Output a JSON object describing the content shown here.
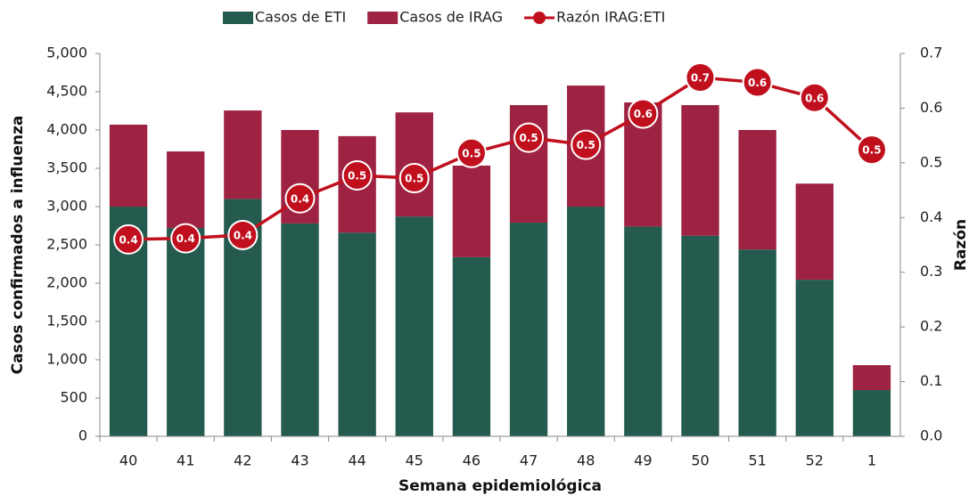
{
  "chart_data": {
    "type": "bar",
    "stacked": true,
    "x_label": "Semana epidemiológica",
    "y_label": "Casos confirmados a influenza",
    "y2_label": "Razón",
    "categories": [
      "40",
      "41",
      "42",
      "43",
      "44",
      "45",
      "46",
      "47",
      "48",
      "49",
      "50",
      "51",
      "52",
      "1"
    ],
    "series": [
      {
        "name": "Casos de ETI",
        "color": "#245b4e",
        "values": [
          3000,
          2720,
          3100,
          2780,
          2660,
          2870,
          2340,
          2790,
          3000,
          2740,
          2620,
          2440,
          2045,
          605
        ]
      },
      {
        "name": "Casos de IRAG",
        "color": "#9e2241",
        "values": [
          1070,
          1000,
          1155,
          1220,
          1260,
          1360,
          1195,
          1535,
          1580,
          1620,
          1705,
          1560,
          1255,
          325
        ]
      },
      {
        "name": "Razón IRAG:ETI",
        "type": "line",
        "axis": "y2",
        "color": "#c0101e",
        "values": [
          0.36,
          0.362,
          0.368,
          0.435,
          0.477,
          0.472,
          0.518,
          0.546,
          0.533,
          0.59,
          0.656,
          0.647,
          0.619,
          0.524
        ],
        "value_labels": [
          "0.4",
          "0.4",
          "0.4",
          "0.4",
          "0.5",
          "0.5",
          "0.5",
          "0.5",
          "0.5",
          "0.6",
          "0.7",
          "0.6",
          "0.6",
          "0.5"
        ]
      }
    ],
    "ylim": [
      0,
      5000
    ],
    "yticks": [
      0,
      500,
      {
        "value": 1000,
        "label": "1,000"
      },
      {
        "value": 1500,
        "label": "1,500"
      },
      {
        "value": 2000,
        "label": "2,000"
      },
      {
        "value": 2500,
        "label": "2,500"
      },
      {
        "value": 3000,
        "label": "3,000"
      },
      {
        "value": 3500,
        "label": "3,500"
      },
      {
        "value": 4000,
        "label": "4,000"
      },
      {
        "value": 4500,
        "label": "4,500"
      },
      {
        "value": 5000,
        "label": "5,000"
      }
    ],
    "y2lim": [
      0,
      0.7
    ],
    "y2ticks": [
      {
        "value": 0,
        "label": "0.0"
      },
      0.1,
      0.2,
      0.3,
      0.4,
      0.5,
      0.6,
      0.7
    ],
    "legend": "top"
  }
}
